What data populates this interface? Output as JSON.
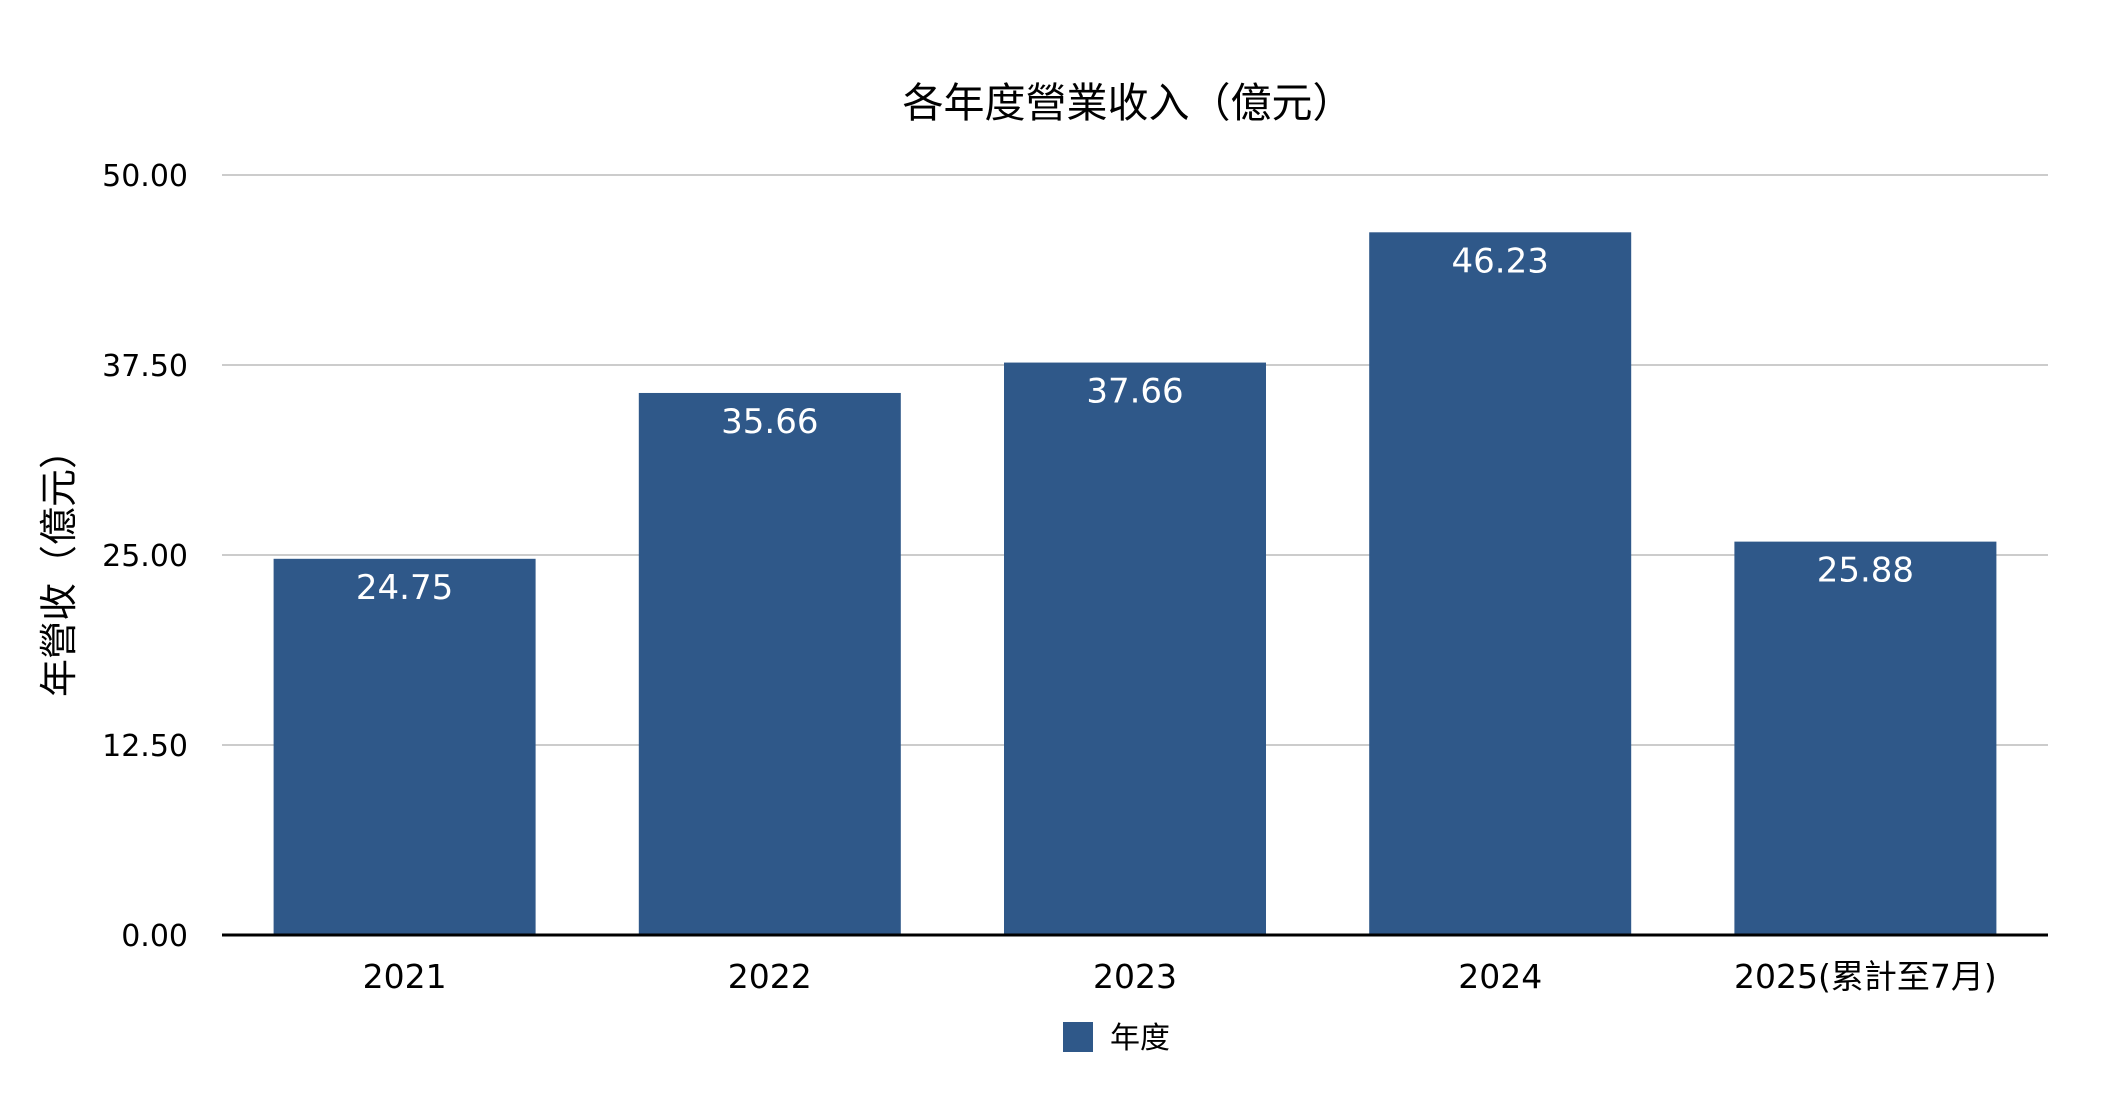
{
  "chart_data": {
    "type": "bar",
    "title": "各年度營業收入（億元）",
    "xlabel": "",
    "ylabel": "年營收（億元）",
    "categories": [
      "2021",
      "2022",
      "2023",
      "2024",
      "2025(累計至7月)"
    ],
    "series": [
      {
        "name": "年度",
        "values": [
          24.75,
          35.66,
          37.66,
          46.23,
          25.88
        ],
        "value_labels": [
          "24.75",
          "35.66",
          "37.66",
          "46.23",
          "25.88"
        ],
        "color": "#2f5889"
      }
    ],
    "ylim": [
      0,
      50
    ],
    "yticks": [
      0,
      12.5,
      25,
      37.5,
      50
    ],
    "ytick_labels": [
      "0.00",
      "12.50",
      "25.00",
      "37.50",
      "50.00"
    ],
    "grid": true,
    "legend": "bottom-center",
    "colors": {
      "bar": "#2f5889",
      "grid": "#cccccc",
      "axis": "#000000",
      "data_label": "#ffffff"
    }
  }
}
